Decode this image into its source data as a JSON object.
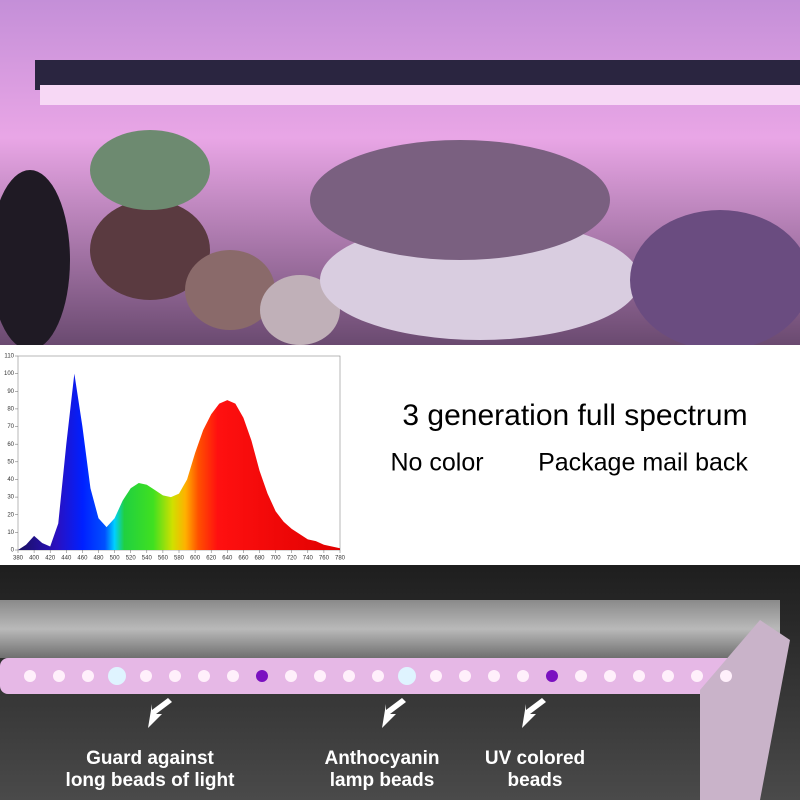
{
  "headline": "3 generation full spectrum",
  "subline": [
    "No color",
    "Package mail back"
  ],
  "callouts": [
    {
      "lines": [
        "Guard against",
        "long beads of light"
      ]
    },
    {
      "lines": [
        "Anthocyanin",
        "lamp beads"
      ]
    },
    {
      "lines": [
        "UV colored",
        "beads"
      ]
    }
  ],
  "spectrum": {
    "type": "area",
    "x": [
      380,
      390,
      400,
      410,
      420,
      430,
      440,
      450,
      460,
      470,
      480,
      490,
      500,
      510,
      520,
      530,
      540,
      550,
      560,
      570,
      580,
      590,
      600,
      610,
      620,
      630,
      640,
      650,
      660,
      670,
      680,
      690,
      700,
      710,
      720,
      730,
      740,
      750,
      760,
      770,
      780
    ],
    "values": [
      0,
      3,
      8,
      4,
      2,
      15,
      60,
      100,
      70,
      35,
      18,
      13,
      18,
      28,
      35,
      38,
      37,
      34,
      31,
      30,
      32,
      40,
      55,
      68,
      77,
      83,
      85,
      83,
      75,
      62,
      45,
      32,
      22,
      16,
      12,
      9,
      6,
      5,
      3,
      2,
      1
    ],
    "xlim": [
      380,
      780
    ],
    "ylim": [
      0,
      110
    ],
    "xticks": [
      380,
      400,
      420,
      440,
      460,
      480,
      500,
      520,
      540,
      560,
      580,
      600,
      620,
      640,
      660,
      680,
      700,
      720,
      740,
      760,
      780
    ],
    "yticks": [
      0,
      10,
      20,
      30,
      40,
      50,
      60,
      70,
      80,
      90,
      100,
      110
    ]
  }
}
